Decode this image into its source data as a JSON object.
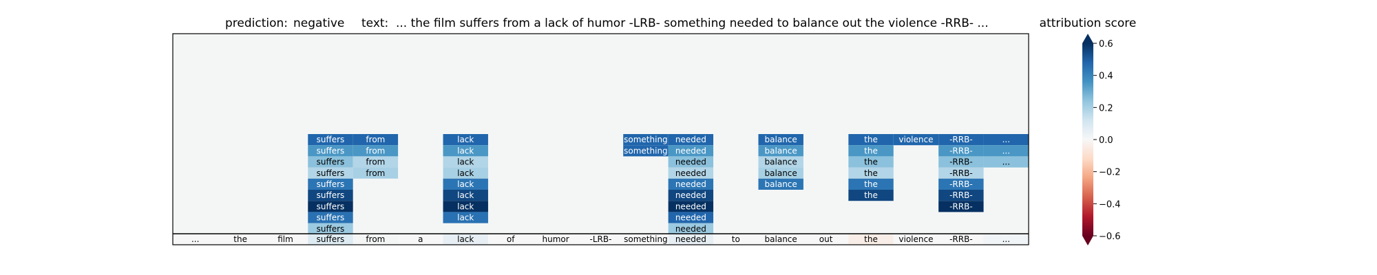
{
  "title": {
    "prediction_label": "prediction:",
    "prediction_value": "negative",
    "text_label": "text:",
    "text_value": "... the film suffers from a lack of humor -LRB- something needed to balance out the violence -RRB- ..."
  },
  "colorbar": {
    "label": "attribution score",
    "ticks": [
      "0.6",
      "0.4",
      "0.2",
      "0.0",
      "−0.2",
      "−0.4",
      "−0.6"
    ]
  },
  "colors": {
    "panel_bg": "#f4f6f6",
    "scale": [
      "#67001f",
      "#b2182b",
      "#d6604d",
      "#f4a582",
      "#fddbc7",
      "#f7f7f7",
      "#d1e5f0",
      "#92c5de",
      "#4393c3",
      "#2166ac",
      "#053061"
    ]
  },
  "chart_data": {
    "type": "heatmap",
    "tokens": [
      "...",
      "the",
      "film",
      "suffers",
      "from",
      "a",
      "lack",
      "of",
      "humor",
      "-LRB-",
      "something",
      "needed",
      "to",
      "balance",
      "out",
      "the",
      "violence",
      "-RRB-",
      "..."
    ],
    "token_scores": [
      0.0,
      0.0,
      0.0,
      0.08,
      0.01,
      0.0,
      0.05,
      0.0,
      0.0,
      0.0,
      0.0,
      0.05,
      0.0,
      0.0,
      0.0,
      -0.04,
      0.0,
      0.0,
      0.02
    ],
    "stacks": [
      {
        "token_index": 3,
        "scores": [
          0.48,
          0.35,
          0.25,
          0.18,
          0.44,
          0.55,
          0.62,
          0.45,
          0.22
        ]
      },
      {
        "token_index": 4,
        "scores": [
          0.48,
          0.35,
          0.18,
          0.2
        ]
      },
      {
        "token_index": 6,
        "scores": [
          0.48,
          0.35,
          0.18,
          0.2,
          0.44,
          0.55,
          0.62,
          0.45
        ]
      },
      {
        "token_index": 10,
        "scores": [
          0.48,
          0.48
        ]
      },
      {
        "token_index": 11,
        "scores": [
          0.48,
          0.35,
          0.25,
          0.18,
          0.44,
          0.55,
          0.62,
          0.48,
          0.22
        ]
      },
      {
        "token_index": 13,
        "scores": [
          0.48,
          0.35,
          0.18,
          0.2,
          0.44
        ]
      },
      {
        "token_index": 15,
        "scores": [
          0.48,
          0.35,
          0.25,
          0.18,
          0.44,
          0.55
        ]
      },
      {
        "token_index": 16,
        "scores": [
          0.48
        ]
      },
      {
        "token_index": 17,
        "scores": [
          0.48,
          0.35,
          0.25,
          0.18,
          0.44,
          0.55,
          0.62
        ]
      },
      {
        "token_index": 18,
        "scores": [
          0.48,
          0.35,
          0.25
        ]
      }
    ],
    "colorbar_range": [
      -0.6,
      0.6
    ],
    "colormap": "RdBu"
  }
}
